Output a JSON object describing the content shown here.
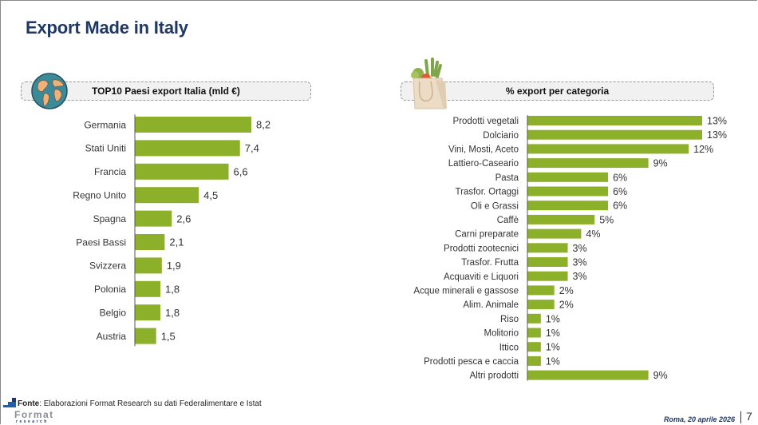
{
  "page": {
    "title": "Export Made in Italy",
    "source_label": "Fonte",
    "source_text": ": Elaborazioni Format Research su dati Federalimentare e Istat",
    "logo_text": "Format",
    "logo_subtext": "research",
    "date": "Roma, 20 aprile 2026",
    "page_number": "7",
    "accent_color": "#8db02a",
    "title_color": "#1f3864"
  },
  "icons": {
    "left_header_icon": "globe-icon",
    "right_header_icon": "grocery-bag-icon"
  },
  "chart_data": [
    {
      "type": "bar",
      "orientation": "horizontal",
      "title": "TOP10 Paesi export Italia (mld €)",
      "xlabel": "",
      "ylabel": "",
      "categories": [
        "Germania",
        "Stati Uniti",
        "Francia",
        "Regno Unito",
        "Spagna",
        "Paesi Bassi",
        "Svizzera",
        "Polonia",
        "Belgio",
        "Austria"
      ],
      "values": [
        8.2,
        7.4,
        6.6,
        4.5,
        2.6,
        2.1,
        1.9,
        1.8,
        1.8,
        1.5
      ],
      "value_labels": [
        "8,2",
        "7,4",
        "6,6",
        "4,5",
        "2,6",
        "2,1",
        "1,9",
        "1,8",
        "1,8",
        "1,5"
      ],
      "xlim": [
        0,
        8.2
      ],
      "grid": false,
      "legend": "none",
      "bar_color": "#8db02a"
    },
    {
      "type": "bar",
      "orientation": "horizontal",
      "title": "% export per categoria",
      "xlabel": "",
      "ylabel": "",
      "categories": [
        "Prodotti vegetali",
        "Dolciario",
        "Vini, Mosti, Aceto",
        "Lattiero-Caseario",
        "Pasta",
        "Trasfor. Ortaggi",
        "Oli e Grassi",
        "Caffè",
        "Carni preparate",
        "Prodotti zootecnici",
        "Trasfor. Frutta",
        "Acquaviti e Liquori",
        "Acque minerali e gassose",
        "Alim. Animale",
        "Riso",
        "Molitorio",
        "Ittico",
        "Prodotti pesca e caccia",
        "Altri prodotti"
      ],
      "values": [
        13,
        13,
        12,
        9,
        6,
        6,
        6,
        5,
        4,
        3,
        3,
        3,
        2,
        2,
        1,
        1,
        1,
        1,
        9
      ],
      "value_labels": [
        "13%",
        "13%",
        "12%",
        "9%",
        "6%",
        "6%",
        "6%",
        "5%",
        "4%",
        "3%",
        "3%",
        "3%",
        "2%",
        "2%",
        "1%",
        "1%",
        "1%",
        "1%",
        "9%"
      ],
      "xlim": [
        0,
        13
      ],
      "grid": false,
      "legend": "none",
      "bar_color": "#8db02a"
    }
  ]
}
